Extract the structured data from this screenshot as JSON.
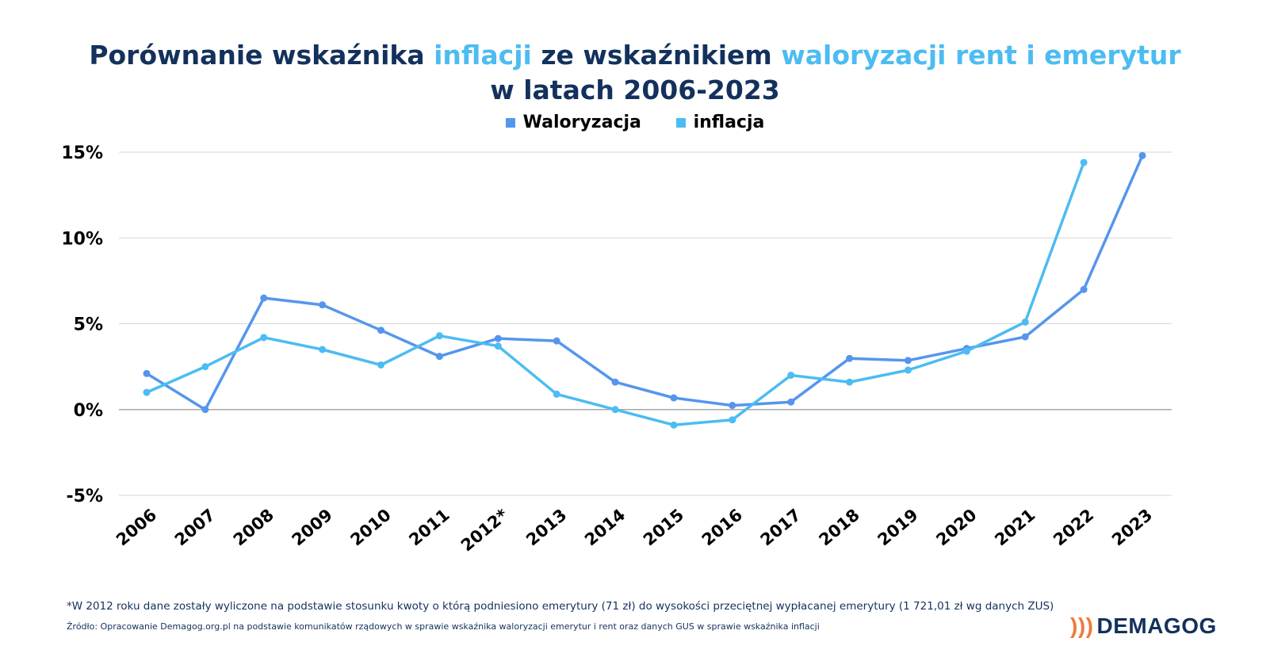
{
  "header": {
    "title_part1": "Porównanie wskaźnika ",
    "title_hl1": "inflacji",
    "title_part2": " ze wskaźnikiem ",
    "title_hl2": "waloryzacji rent i emerytur",
    "title_line2": "w latach 2006-2023"
  },
  "colors": {
    "waloryzacja": "#5596ec",
    "inflacja": "#4cbcf2",
    "title": "#13315c",
    "accent": "#4cbcf2",
    "logo_waves": "#f07a3a"
  },
  "chart_data": {
    "type": "line",
    "categories": [
      "2006",
      "2007",
      "2008",
      "2009",
      "2010",
      "2011",
      "2012*",
      "2013",
      "2014",
      "2015",
      "2016",
      "2017",
      "2018",
      "2019",
      "2020",
      "2021",
      "2022",
      "2023"
    ],
    "series": [
      {
        "name": "Waloryzacja",
        "color": "#5596ec",
        "values": [
          2.1,
          0.0,
          6.5,
          6.1,
          4.62,
          3.1,
          4.14,
          4.0,
          1.6,
          0.68,
          0.24,
          0.44,
          2.98,
          2.86,
          3.56,
          4.24,
          7.0,
          14.8
        ]
      },
      {
        "name": "inflacja",
        "color": "#4cbcf2",
        "values": [
          1.0,
          2.5,
          4.2,
          3.5,
          2.6,
          4.3,
          3.7,
          0.9,
          0.0,
          -0.9,
          -0.6,
          2.0,
          1.6,
          2.3,
          3.4,
          5.1,
          14.4,
          null
        ]
      }
    ],
    "ylim": [
      -5,
      15
    ],
    "yticks": [
      -5,
      0,
      5,
      10,
      15
    ],
    "ytick_labels": [
      "-5%",
      "0%",
      "5%",
      "10%",
      "15%"
    ],
    "grid": true,
    "legend_position": "top-center"
  },
  "footer": {
    "note": "*W 2012 roku dane zostały wyliczone na podstawie stosunku kwoty o którą podniesiono emerytury (71 zł) do wysokości przeciętnej wypłacanej emerytury (1 721,01 zł wg danych ZUS)",
    "source": "Źródło: Opracowanie Demagog.org.pl na podstawie komunikatów rządowych w sprawie wskaźnika waloryzacji emerytur i rent oraz danych GUS w sprawie wskaźnika inflacji",
    "logo_text": "DEMAGOG"
  }
}
